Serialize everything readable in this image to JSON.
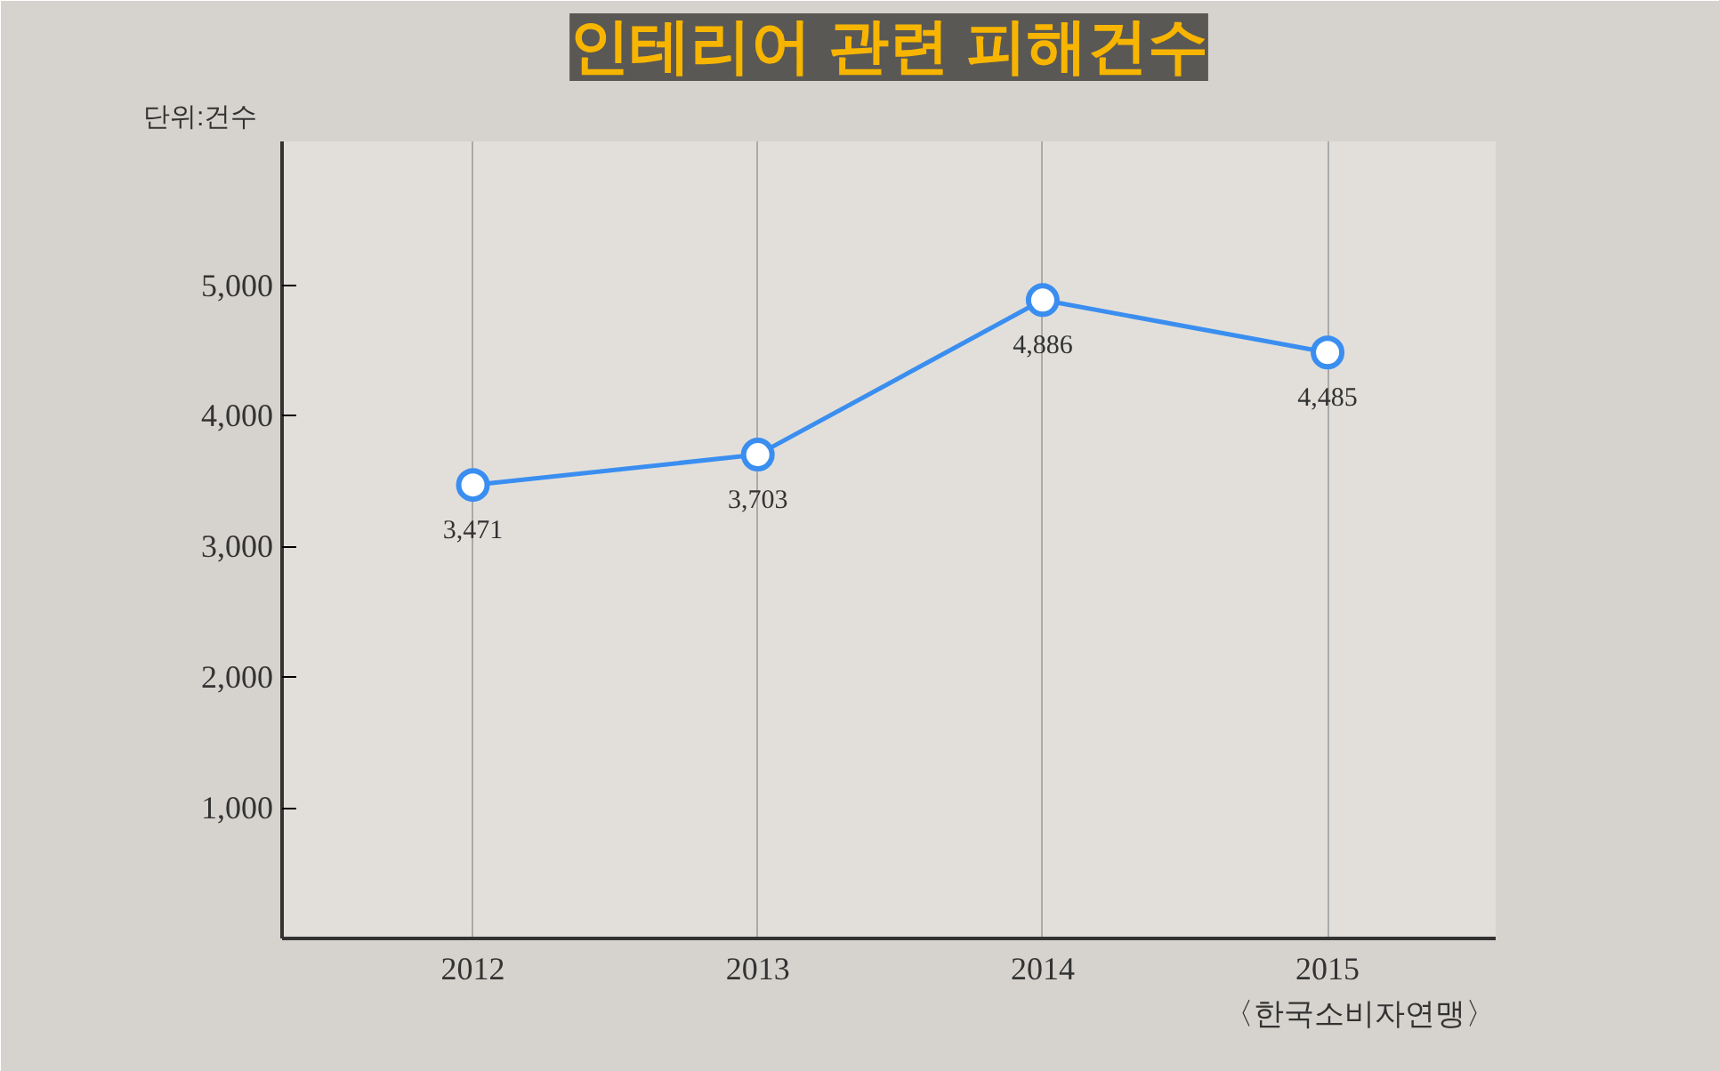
{
  "chart_data": {
    "type": "line",
    "title": "인테리어 관련 피해건수",
    "ylabel": "단위:건수",
    "categories": [
      "2012",
      "2013",
      "2014",
      "2015"
    ],
    "series": [
      {
        "color": "#3a8ef0",
        "values": [
          3471,
          3703,
          4886,
          4485
        ]
      }
    ],
    "ylim": [
      0,
      6100
    ],
    "yticks": [
      {
        "value": 1000,
        "label": "1,000"
      },
      {
        "value": 2000,
        "label": "2,000"
      },
      {
        "value": 3000,
        "label": "3,000"
      },
      {
        "value": 4000,
        "label": "4,000"
      },
      {
        "value": 5000,
        "label": "5,000"
      }
    ],
    "value_labels": [
      "3,471",
      "3,703",
      "4,886",
      "4,485"
    ],
    "annotations": [
      "〈한국소비자연맹〉"
    ],
    "grid": "x",
    "marker": "circle",
    "line_style": "solid"
  }
}
